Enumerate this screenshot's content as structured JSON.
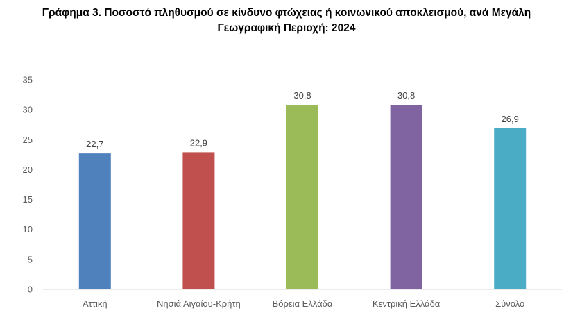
{
  "chart_data": {
    "type": "bar",
    "title_lines": [
      "Γράφημα 3. Ποσοστό πληθυσμού σε κίνδυνο φτώχειας ή κοινωνικού αποκλεισμού, ανά  Μεγάλη",
      "Γεωγραφική Περιοχή: 2024"
    ],
    "categories": [
      "Αττική",
      "Νησιά Αιγαίου-Κρήτη",
      "Βόρεια Ελλάδα",
      "Κεντρική Ελλάδα",
      "Σύνολο"
    ],
    "values": [
      22.7,
      22.9,
      30.8,
      30.8,
      26.9
    ],
    "value_labels": [
      "22,7",
      "22,9",
      "30,8",
      "30,8",
      "26,9"
    ],
    "colors": [
      "#4f81bd",
      "#c0504d",
      "#9bbb59",
      "#8064a2",
      "#4bacc6"
    ],
    "ylim": [
      0,
      35
    ],
    "yticks": [
      "0",
      "5",
      "10",
      "15",
      "20",
      "25",
      "30",
      "35"
    ],
    "ytick_values": [
      0,
      5,
      10,
      15,
      20,
      25,
      30,
      35
    ],
    "grid": false,
    "legend": "none"
  }
}
